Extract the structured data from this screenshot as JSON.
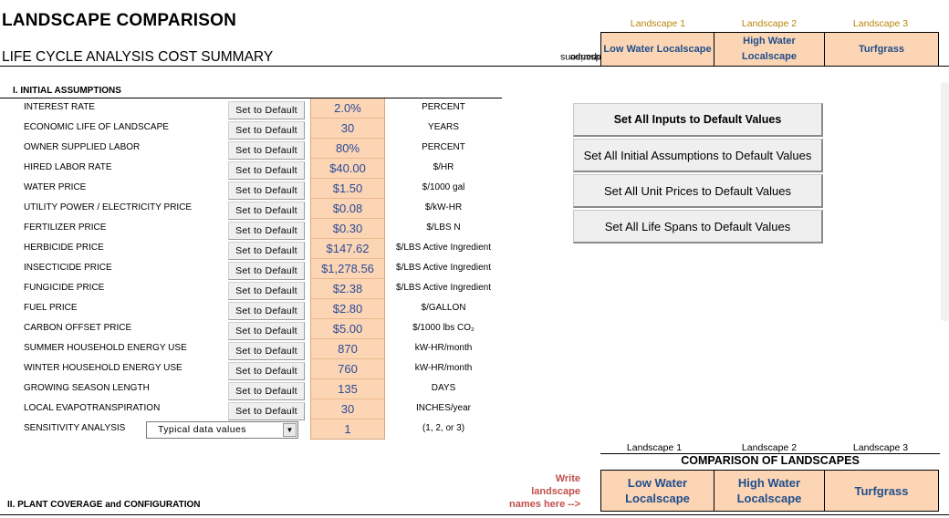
{
  "header": {
    "title": "LANDSCAPE COMPARISON",
    "subtitle": "LIFE CYCLE ANALYSIS COST SUMMARY",
    "landscape_comparisons_label_1": "Landscape",
    "landscape_comparisons_label_2": "Comparisons"
  },
  "landscapes_top": [
    {
      "header": "Landscape 1",
      "name": "Low Water Localscape"
    },
    {
      "header": "Landscape 2",
      "name": "High Water Localscape"
    },
    {
      "header": "Landscape 3",
      "name": "Turfgrass"
    }
  ],
  "section1": {
    "title": "I. INITIAL ASSUMPTIONS"
  },
  "set_default_label": "Set to Default",
  "assumptions": [
    {
      "label": "INTEREST RATE",
      "value": "2.0%",
      "unit": "PERCENT"
    },
    {
      "label": "ECONOMIC LIFE OF LANDSCAPE",
      "value": "30",
      "unit": "YEARS"
    },
    {
      "label": "OWNER SUPPLIED LABOR",
      "value": "80%",
      "unit": "PERCENT"
    },
    {
      "label": "HIRED LABOR RATE",
      "value": "$40.00",
      "unit": "$/HR"
    },
    {
      "label": "WATER PRICE",
      "value": "$1.50",
      "unit": "$/1000 gal"
    },
    {
      "label": "UTILITY POWER / ELECTRICITY PRICE",
      "value": "$0.08",
      "unit": "$/kW-HR"
    },
    {
      "label": "FERTILIZER PRICE",
      "value": "$0.30",
      "unit": "$/LBS N"
    },
    {
      "label": "HERBICIDE PRICE",
      "value": "$147.62",
      "unit": "$/LBS Active Ingredient"
    },
    {
      "label": "INSECTICIDE PRICE",
      "value": "$1,278.56",
      "unit": "$/LBS Active Ingredient"
    },
    {
      "label": "FUNGICIDE PRICE",
      "value": "$2.38",
      "unit": "$/LBS Active Ingredient"
    },
    {
      "label": "FUEL PRICE",
      "value": "$2.80",
      "unit": "$/GALLON"
    },
    {
      "label": "CARBON OFFSET PRICE",
      "value": "$5.00",
      "unit": "$/1000 lbs CO₂"
    },
    {
      "label": "SUMMER HOUSEHOLD ENERGY USE",
      "value": "870",
      "unit": "kW-HR/month"
    },
    {
      "label": "WINTER HOUSEHOLD ENERGY USE",
      "value": "760",
      "unit": "kW-HR/month"
    },
    {
      "label": "GROWING SEASON LENGTH",
      "value": "135",
      "unit": "DAYS"
    },
    {
      "label": "LOCAL EVAPOTRANSPIRATION",
      "value": "30",
      "unit": "INCHES/year"
    }
  ],
  "sensitivity": {
    "label": "SENSITIVITY ANALYSIS",
    "selected": "Typical data values",
    "value": "1",
    "unit": "(1, 2, or 3)"
  },
  "actions": [
    "Set All Inputs to Default Values",
    "Set All Initial Assumptions to Default Values",
    "Set All Unit Prices to Default Values",
    "Set All Life Spans to Default Values"
  ],
  "comparison": {
    "title": "COMPARISON OF LANDSCAPES",
    "headers": [
      "Landscape 1",
      "Landscape 2",
      "Landscape 3"
    ],
    "names": [
      "Low Water Localscape",
      "High Water Localscape",
      "Turfgrass"
    ],
    "write_note_1": "Write",
    "write_note_2": "landscape",
    "write_note_3": "names here -->"
  },
  "section2": {
    "title": "II. PLANT COVERAGE and CONFIGURATION"
  }
}
